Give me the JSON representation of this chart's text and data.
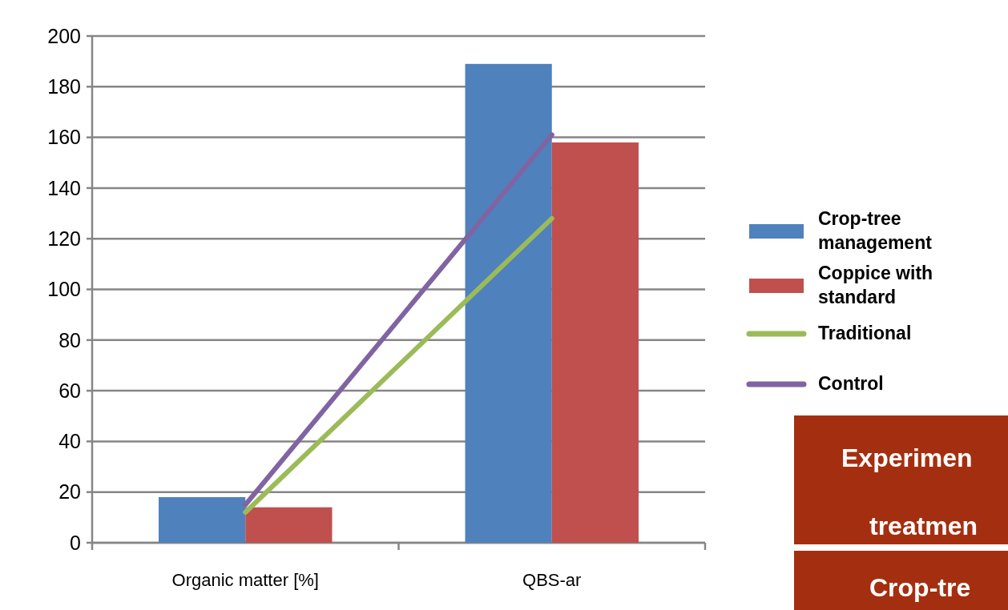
{
  "chart_data": {
    "type": "bar",
    "categories": [
      "Organic matter  [%]",
      "QBS-ar"
    ],
    "series": [
      {
        "name": "Crop-tree management",
        "color": "#4f81bd",
        "values": [
          18,
          189
        ]
      },
      {
        "name": "Coppice with standard",
        "color": "#c0504d",
        "values": [
          14,
          158
        ]
      },
      {
        "name": "Traditional",
        "type": "line",
        "color": "#9bbb59",
        "values": [
          12,
          128
        ]
      },
      {
        "name": "Control",
        "type": "line",
        "color": "#8064a2",
        "values": [
          15,
          161
        ]
      }
    ],
    "ylim": [
      0,
      200
    ],
    "yticks": [
      0,
      20,
      40,
      60,
      80,
      100,
      120,
      140,
      160,
      180,
      200
    ],
    "grid": "y",
    "legend": "right",
    "annotations": [
      "Experimen",
      "treatmen",
      "Crop-tre"
    ]
  }
}
